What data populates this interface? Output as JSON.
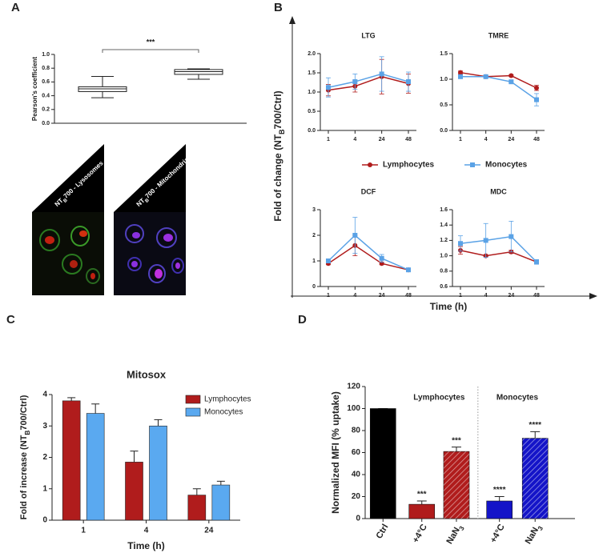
{
  "panel_labels": [
    "A",
    "B",
    "C",
    "D"
  ],
  "images": [
    {
      "label": [
        "NT",
        "B",
        "700 - Lysosomes"
      ]
    },
    {
      "label": [
        "NT",
        "B",
        "700 - Mitochondria"
      ]
    }
  ],
  "figure_b": {
    "y_label": [
      "Fold of change (NT",
      "B",
      "700/Ctrl)"
    ],
    "x_label": "Time (h)"
  },
  "chart_data": [
    {
      "type": "box",
      "y_label": "Pearson's coefficient",
      "annotation": "***",
      "boxes": [
        {
          "min": 0.37,
          "q1": 0.46,
          "median": 0.5,
          "q3": 0.53,
          "max": 0.68
        },
        {
          "min": 0.64,
          "q1": 0.71,
          "median": 0.75,
          "q3": 0.78,
          "max": 0.79
        }
      ],
      "ylim": [
        0,
        1
      ],
      "yticks": [
        {
          "value": 0,
          "label": "0.0"
        },
        0.2,
        0.4,
        0.6,
        0.8,
        {
          "value": 1,
          "label": "1.0"
        }
      ]
    },
    {
      "type": "line",
      "title": "LTG",
      "categories": [
        "1",
        "4",
        "24",
        "48"
      ],
      "ylim": [
        0,
        2
      ],
      "yticks": [
        {
          "value": 0,
          "label": "0.0"
        },
        0.5,
        {
          "value": 1,
          "label": "1.0"
        },
        1.5,
        {
          "value": 2,
          "label": "2.0"
        }
      ],
      "series": [
        {
          "name": "Lymphocytes",
          "color": "#b01c1c",
          "marker": "circle",
          "values": [
            1.05,
            1.15,
            1.4,
            1.22
          ],
          "errors": [
            0.15,
            0.15,
            0.45,
            0.25
          ]
        },
        {
          "name": "Monocytes",
          "color": "#5aa2e6",
          "marker": "square",
          "values": [
            1.12,
            1.27,
            1.47,
            1.27
          ],
          "errors": [
            0.25,
            0.2,
            0.45,
            0.25
          ]
        }
      ]
    },
    {
      "type": "line",
      "title": "TMRE",
      "categories": [
        "1",
        "4",
        "24",
        "48"
      ],
      "ylim": [
        0,
        1.5
      ],
      "yticks": [
        {
          "value": 0,
          "label": "0.0"
        },
        0.5,
        {
          "value": 1,
          "label": "1.0"
        },
        1.5
      ],
      "series": [
        {
          "name": "Lymphocytes",
          "color": "#b01c1c",
          "marker": "circle",
          "values": [
            1.13,
            1.05,
            1.07,
            0.83
          ],
          "errors": [
            0.03,
            0.02,
            0.02,
            0.05
          ]
        },
        {
          "name": "Monocytes",
          "color": "#5aa2e6",
          "marker": "square",
          "values": [
            1.05,
            1.05,
            0.95,
            0.6
          ],
          "errors": [
            0.03,
            0.02,
            0.02,
            0.12
          ]
        }
      ]
    },
    {
      "type": "line",
      "title": "DCF",
      "categories": [
        "1",
        "4",
        "24",
        "48"
      ],
      "ylim": [
        0,
        3
      ],
      "yticks": [
        0,
        1,
        2,
        3
      ],
      "series": [
        {
          "name": "Lymphocytes",
          "color": "#b01c1c",
          "marker": "circle",
          "values": [
            0.9,
            1.6,
            0.9,
            0.65
          ],
          "errors": [
            0.05,
            0.4,
            0.05,
            0.05
          ]
        },
        {
          "name": "Monocytes",
          "color": "#5aa2e6",
          "marker": "square",
          "values": [
            1.0,
            2.0,
            1.1,
            0.65
          ],
          "errors": [
            0.05,
            0.7,
            0.15,
            0.05
          ]
        }
      ]
    },
    {
      "type": "line",
      "title": "MDC",
      "categories": [
        "1",
        "4",
        "24",
        "48"
      ],
      "ylim": [
        0.6,
        1.6
      ],
      "yticks": [
        0.6,
        0.8,
        {
          "value": 1,
          "label": "1.0"
        },
        1.2,
        1.4,
        1.6
      ],
      "series": [
        {
          "name": "Lymphocytes",
          "color": "#b01c1c",
          "marker": "circle",
          "values": [
            1.07,
            1.0,
            1.05,
            0.92
          ],
          "errors": [
            0.05,
            0.01,
            0.02,
            0.02
          ]
        },
        {
          "name": "Monocytes",
          "color": "#5aa2e6",
          "marker": "square",
          "values": [
            1.16,
            1.2,
            1.25,
            0.92
          ],
          "errors": [
            0.1,
            0.22,
            0.2,
            0.03
          ]
        }
      ]
    },
    {
      "type": "grouped_bar",
      "title": "Mitosox",
      "y_label": [
        "Fold of increase (NT",
        "B",
        "700/Ctrl)"
      ],
      "x_label": "Time (h)",
      "categories": [
        "1",
        "4",
        "24"
      ],
      "legend": "upper right",
      "ylim": [
        0,
        4
      ],
      "yticks": [
        0,
        1,
        2,
        3,
        4
      ],
      "series": [
        {
          "name": "Lymphocytes",
          "color": "#b01c1c",
          "values": [
            3.8,
            1.85,
            0.8
          ],
          "errors": [
            0.1,
            0.35,
            0.2
          ]
        },
        {
          "name": "Monocytes",
          "color": "#5aa9f0",
          "values": [
            3.4,
            3.0,
            1.12
          ],
          "errors": [
            0.3,
            0.2,
            0.12
          ]
        }
      ]
    },
    {
      "type": "bar",
      "y_label": "Normalized MFI (% uptake)",
      "categories": [
        "Ctrl",
        "+4°C",
        "NaN",
        "+4°C",
        "NaN"
      ],
      "category_subscripts": [
        null,
        null,
        "3",
        null,
        "3"
      ],
      "values": [
        100,
        13,
        61,
        16,
        73
      ],
      "errors": [
        0,
        3,
        4,
        4,
        6
      ],
      "colors": [
        "#000000",
        "#b01c1c",
        "#b01c1c",
        "#1414c8",
        "#1414c8"
      ],
      "patterns": [
        "solid",
        "solid",
        "hatch",
        "solid",
        "hatch"
      ],
      "annotations": [
        null,
        "***",
        "***",
        "****",
        "****"
      ],
      "groups": [
        "Lymphocytes",
        "Monocytes"
      ],
      "ylim": [
        0,
        120
      ],
      "yticks": [
        0,
        20,
        40,
        60,
        80,
        100,
        120
      ]
    }
  ]
}
